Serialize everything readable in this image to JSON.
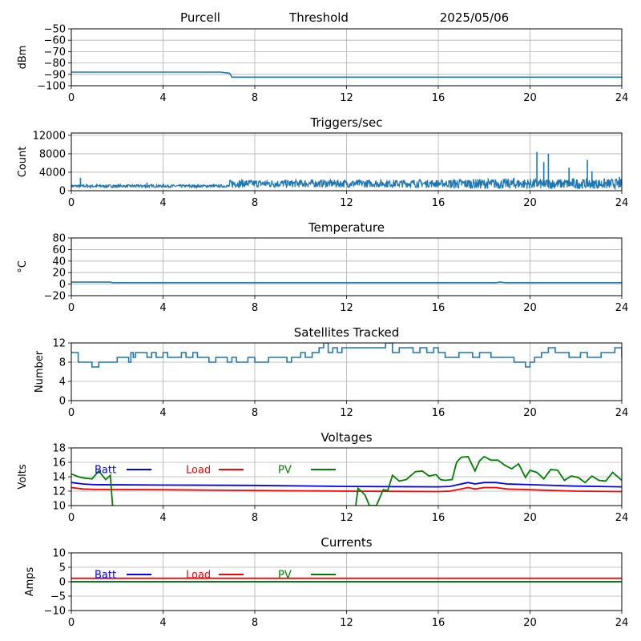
{
  "header": {
    "station": "Purcell",
    "mode": "Threshold",
    "date": "2025/05/06"
  },
  "colors": {
    "primary": "#1f77b4",
    "batt": "#0000ff",
    "load": "#ff0000",
    "pv": "#008000",
    "grid": "#b0b0b0"
  },
  "chart_data": [
    {
      "id": "threshold",
      "type": "line",
      "title": "",
      "xlabel": "",
      "ylabel": "dBm",
      "xlim": [
        0,
        24
      ],
      "ylim": [
        -100,
        -50
      ],
      "xticks": [
        "0",
        "4",
        "8",
        "12",
        "16",
        "20",
        "24"
      ],
      "yticks": [
        "−100",
        "−90",
        "−80",
        "−70",
        "−60",
        "−50"
      ],
      "ytick_values": [
        -100,
        -90,
        -80,
        -70,
        -60,
        -50
      ],
      "grid": true,
      "series": [
        {
          "x": [
            0,
            6.5,
            6.9,
            7.0,
            24
          ],
          "y": [
            -88,
            -88,
            -89,
            -92.5,
            -92.5
          ]
        }
      ]
    },
    {
      "id": "triggers",
      "type": "line",
      "title": "Triggers/sec",
      "xlabel": "",
      "ylabel": "Count",
      "xlim": [
        0,
        24
      ],
      "ylim": [
        0,
        12500
      ],
      "xticks": [
        "0",
        "4",
        "8",
        "12",
        "16",
        "20",
        "24"
      ],
      "yticks": [
        "0",
        "4000",
        "8000",
        "12000"
      ],
      "ytick_values": [
        0,
        4000,
        8000,
        12000
      ],
      "grid": true,
      "bands": [
        {
          "x0": 0,
          "x1": 6.9,
          "lo": 700,
          "hi": 1300
        },
        {
          "x0": 6.9,
          "x1": 16.5,
          "lo": 700,
          "hi": 2400
        },
        {
          "x0": 16.5,
          "x1": 24,
          "lo": 400,
          "hi": 2600
        }
      ],
      "spikes": [
        {
          "x": 0.4,
          "y": 2800
        },
        {
          "x": 3.3,
          "y": 1800
        },
        {
          "x": 18.1,
          "y": 1800
        },
        {
          "x": 19.3,
          "y": 2800
        },
        {
          "x": 20.3,
          "y": 8400
        },
        {
          "x": 20.6,
          "y": 6200
        },
        {
          "x": 20.8,
          "y": 8000
        },
        {
          "x": 21.7,
          "y": 5000
        },
        {
          "x": 22.5,
          "y": 6700
        },
        {
          "x": 22.7,
          "y": 4200
        },
        {
          "x": 23.9,
          "y": 3000
        }
      ]
    },
    {
      "id": "temperature",
      "type": "line",
      "title": "Temperature",
      "xlabel": "",
      "ylabel": "°C",
      "xlim": [
        0,
        24
      ],
      "ylim": [
        -20,
        80
      ],
      "xticks": [
        "0",
        "4",
        "8",
        "12",
        "16",
        "20",
        "24"
      ],
      "yticks": [
        "−20",
        "0",
        "20",
        "40",
        "60",
        "80"
      ],
      "ytick_values": [
        -20,
        0,
        20,
        40,
        60,
        80
      ],
      "grid": true,
      "series": [
        {
          "x": [
            0,
            1.7,
            1.8,
            18.5,
            18.7,
            18.9,
            24
          ],
          "y": [
            3.5,
            3.5,
            2.5,
            2.5,
            3.5,
            2.5,
            2.5
          ]
        }
      ]
    },
    {
      "id": "satellites",
      "type": "line",
      "title": "Satellites Tracked",
      "xlabel": "",
      "ylabel": "Number",
      "xlim": [
        0,
        24
      ],
      "ylim": [
        0,
        12
      ],
      "xticks": [
        "0",
        "4",
        "8",
        "12",
        "16",
        "20",
        "24"
      ],
      "yticks": [
        "0",
        "4",
        "8",
        "12"
      ],
      "ytick_values": [
        0,
        4,
        8,
        12
      ],
      "grid": true,
      "series": [
        {
          "x": [
            0,
            0.2,
            0.3,
            0.8,
            0.9,
            1.2,
            1.6,
            2,
            2.2,
            2.5,
            2.6,
            2.7,
            2.8,
            3,
            3.3,
            3.5,
            3.7,
            4,
            4.2,
            4.4,
            4.8,
            5,
            5.3,
            5.5,
            5.8,
            6,
            6.3,
            6.5,
            6.8,
            7,
            7.2,
            7.4,
            7.7,
            8,
            8.2,
            8.6,
            9,
            9.4,
            9.6,
            10,
            10.2,
            10.5,
            10.8,
            11,
            11.2,
            11.4,
            11.6,
            11.8,
            12,
            12.3,
            12.6,
            13,
            13.4,
            13.7,
            14,
            14.3,
            14.6,
            14.9,
            15.2,
            15.5,
            15.8,
            16,
            16.3,
            16.6,
            16.9,
            17.2,
            17.5,
            17.8,
            18,
            18.3,
            18.6,
            19,
            19.3,
            19.6,
            19.8,
            20,
            20.2,
            20.5,
            20.8,
            21.1,
            21.4,
            21.7,
            22,
            22.2,
            22.5,
            22.8,
            23.1,
            23.4,
            23.7,
            24
          ],
          "y": [
            10,
            10,
            8,
            8,
            7,
            8,
            8,
            9,
            9,
            8,
            10,
            9,
            10,
            10,
            9,
            10,
            9,
            10,
            9,
            9,
            10,
            9,
            10,
            9,
            9,
            8,
            9,
            9,
            8,
            9,
            8,
            8,
            9,
            8,
            8,
            9,
            9,
            8,
            9,
            10,
            9,
            10,
            11,
            12,
            10,
            11,
            10,
            11,
            11,
            11,
            11,
            11,
            11,
            12,
            10,
            11,
            11,
            10,
            11,
            10,
            11,
            10,
            9,
            9,
            10,
            10,
            9,
            10,
            10,
            9,
            9,
            9,
            8,
            8,
            7,
            8,
            9,
            10,
            11,
            10,
            10,
            9,
            9,
            10,
            9,
            9,
            10,
            10,
            11,
            9
          ]
        }
      ]
    },
    {
      "id": "voltages",
      "type": "line",
      "title": "Voltages",
      "xlabel": "",
      "ylabel": "Volts",
      "xlim": [
        0,
        24
      ],
      "ylim": [
        10,
        18
      ],
      "xticks": [
        "0",
        "4",
        "8",
        "12",
        "16",
        "20",
        "24"
      ],
      "yticks": [
        "10",
        "12",
        "14",
        "16",
        "18"
      ],
      "ytick_values": [
        10,
        12,
        14,
        16,
        18
      ],
      "grid": true,
      "legend": [
        "Batt",
        "Load",
        "PV"
      ],
      "series": [
        {
          "name": "Batt",
          "x": [
            0,
            0.5,
            1,
            4,
            8,
            12,
            16,
            16.5,
            17,
            17.3,
            17.6,
            18,
            18.5,
            19,
            20,
            22,
            24
          ],
          "y": [
            13.2,
            13.0,
            12.9,
            12.85,
            12.8,
            12.65,
            12.6,
            12.65,
            13.0,
            13.2,
            13.0,
            13.2,
            13.2,
            13.0,
            12.9,
            12.7,
            12.6
          ]
        },
        {
          "name": "Load",
          "x": [
            0,
            0.5,
            1,
            4,
            8,
            12,
            16,
            16.5,
            17,
            17.3,
            17.6,
            18,
            18.5,
            19,
            20,
            22,
            24
          ],
          "y": [
            12.5,
            12.3,
            12.25,
            12.2,
            12.1,
            12.0,
            11.95,
            12.0,
            12.3,
            12.5,
            12.3,
            12.5,
            12.5,
            12.3,
            12.2,
            12.0,
            11.95
          ]
        },
        {
          "name": "PV",
          "x": [
            0,
            0.3,
            0.6,
            0.9,
            1.2,
            1.5,
            1.7,
            1.8
          ],
          "y": [
            14.4,
            14.0,
            13.8,
            13.7,
            14.8,
            13.6,
            14.2,
            10.0
          ]
        },
        {
          "name": "PV",
          "x": [
            12.4,
            12.5,
            12.8,
            13,
            13.3,
            13.6,
            13.8,
            14,
            14.3,
            14.6,
            15,
            15.3,
            15.6,
            15.9,
            16.1,
            16.3,
            16.6,
            16.8,
            17,
            17.3,
            17.6,
            17.8,
            18,
            18.3,
            18.6,
            18.9,
            19.2,
            19.5,
            19.8,
            20,
            20.3,
            20.6,
            20.9,
            21.2,
            21.5,
            21.8,
            22.1,
            22.4,
            22.7,
            23,
            23.3,
            23.6,
            24
          ],
          "y": [
            10.0,
            12.4,
            11.5,
            10.0,
            10.0,
            12.2,
            12.1,
            14.2,
            13.4,
            13.6,
            14.7,
            14.8,
            14.1,
            14.3,
            13.6,
            13.5,
            13.6,
            16.0,
            16.7,
            16.8,
            14.8,
            16.2,
            16.8,
            16.3,
            16.3,
            15.6,
            15.1,
            15.8,
            13.9,
            14.9,
            14.6,
            13.7,
            15.0,
            14.9,
            13.5,
            14.1,
            13.9,
            13.2,
            14.1,
            13.5,
            13.4,
            14.6,
            13.5
          ]
        }
      ]
    },
    {
      "id": "currents",
      "type": "line",
      "title": "Currents",
      "xlabel": "",
      "ylabel": "Amps",
      "xlim": [
        0,
        24
      ],
      "ylim": [
        -10,
        10
      ],
      "xticks": [
        "0",
        "4",
        "8",
        "12",
        "16",
        "20",
        "24"
      ],
      "yticks": [
        "−10",
        "−5",
        "0",
        "5",
        "10"
      ],
      "ytick_values": [
        -10,
        -5,
        0,
        5,
        10
      ],
      "grid": true,
      "legend": [
        "Batt",
        "Load",
        "PV"
      ],
      "series": [
        {
          "name": "Batt",
          "x": [
            0,
            24
          ],
          "y": [
            0,
            0
          ]
        },
        {
          "name": "Load",
          "x": [
            0,
            24
          ],
          "y": [
            1.2,
            1.2
          ]
        },
        {
          "name": "PV",
          "x": [
            0,
            24
          ],
          "y": [
            0,
            0
          ]
        }
      ]
    }
  ]
}
